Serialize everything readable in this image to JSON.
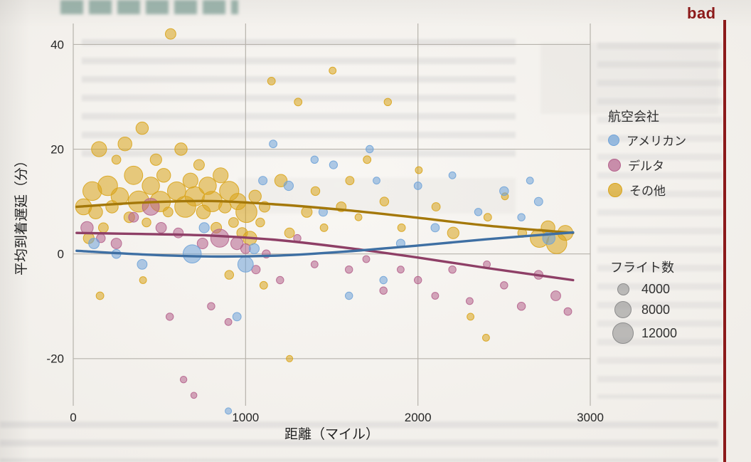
{
  "page": {
    "bad_label": "bad"
  },
  "chart_data": {
    "type": "scatter",
    "title": "",
    "xlabel": "距離（マイル）",
    "ylabel": "平均到着遅延（分）",
    "xlim": [
      0,
      3000
    ],
    "ylim": [
      -29,
      44
    ],
    "xticks": [
      0,
      1000,
      2000,
      3000
    ],
    "yticks": [
      -20,
      0,
      20,
      40
    ],
    "grid": true,
    "legend_title": "航空会社",
    "size_legend": {
      "title": "フライト数",
      "values": [
        4000,
        8000,
        12000
      ]
    },
    "size_legend_color": "#8c8c8c",
    "bad_color": "#8c1a1a",
    "series": [
      {
        "name": "アメリカン",
        "color": "#6FA3D8",
        "trend_color": "#3E6FA3",
        "points": [
          [
            120,
            2,
            3000
          ],
          [
            250,
            0,
            2200
          ],
          [
            400,
            -2,
            2600
          ],
          [
            690,
            0,
            9000
          ],
          [
            760,
            5,
            2800
          ],
          [
            900,
            -30,
            1100
          ],
          [
            950,
            -12,
            1900
          ],
          [
            1000,
            -2,
            6500
          ],
          [
            1050,
            1,
            2800
          ],
          [
            1100,
            14,
            2000
          ],
          [
            1160,
            21,
            1600
          ],
          [
            1250,
            13,
            2400
          ],
          [
            1400,
            18,
            1500
          ],
          [
            1450,
            8,
            2000
          ],
          [
            1510,
            17,
            1700
          ],
          [
            1600,
            -8,
            1500
          ],
          [
            1720,
            20,
            1500
          ],
          [
            1760,
            14,
            1300
          ],
          [
            1800,
            -5,
            1500
          ],
          [
            1900,
            2,
            2000
          ],
          [
            2000,
            13,
            1600
          ],
          [
            2100,
            5,
            1900
          ],
          [
            2200,
            15,
            1300
          ],
          [
            2350,
            8,
            1500
          ],
          [
            2500,
            12,
            2100
          ],
          [
            2600,
            7,
            1500
          ],
          [
            2650,
            14,
            1300
          ],
          [
            2700,
            10,
            1900
          ],
          [
            2760,
            3,
            4200
          ]
        ]
      },
      {
        "name": "デルタ",
        "color": "#B5638D",
        "trend_color": "#8E3F66",
        "points": [
          [
            80,
            5,
            4200
          ],
          [
            160,
            3,
            2100
          ],
          [
            250,
            2,
            3000
          ],
          [
            350,
            7,
            2600
          ],
          [
            450,
            9,
            7800
          ],
          [
            510,
            5,
            3000
          ],
          [
            560,
            -12,
            1500
          ],
          [
            610,
            4,
            2600
          ],
          [
            640,
            -24,
            1200
          ],
          [
            700,
            -27,
            1000
          ],
          [
            750,
            2,
            3100
          ],
          [
            800,
            -10,
            1500
          ],
          [
            850,
            3,
            8800
          ],
          [
            900,
            -13,
            1300
          ],
          [
            950,
            2,
            4200
          ],
          [
            1000,
            1,
            2600
          ],
          [
            1060,
            -3,
            2000
          ],
          [
            1120,
            0,
            1800
          ],
          [
            1200,
            -5,
            1500
          ],
          [
            1300,
            3,
            1500
          ],
          [
            1400,
            -2,
            1300
          ],
          [
            1600,
            -3,
            1500
          ],
          [
            1700,
            -1,
            1300
          ],
          [
            1800,
            -7,
            1500
          ],
          [
            1900,
            -3,
            1300
          ],
          [
            2000,
            -5,
            1500
          ],
          [
            2100,
            -8,
            1300
          ],
          [
            2200,
            -3,
            1500
          ],
          [
            2300,
            -9,
            1300
          ],
          [
            2400,
            -2,
            1300
          ],
          [
            2500,
            -6,
            1500
          ],
          [
            2600,
            -10,
            1800
          ],
          [
            2700,
            -4,
            2100
          ],
          [
            2800,
            -8,
            2600
          ],
          [
            2870,
            -11,
            1600
          ]
        ]
      },
      {
        "name": "その他",
        "color": "#D9A41B",
        "trend_color": "#A4780A",
        "points": [
          [
            60,
            9,
            7000
          ],
          [
            90,
            3,
            3200
          ],
          [
            110,
            12,
            9500
          ],
          [
            130,
            8,
            5200
          ],
          [
            150,
            20,
            6200
          ],
          [
            175,
            5,
            2600
          ],
          [
            200,
            13,
            10500
          ],
          [
            225,
            9,
            4200
          ],
          [
            250,
            18,
            2200
          ],
          [
            270,
            11,
            8200
          ],
          [
            300,
            21,
            5200
          ],
          [
            325,
            7,
            3100
          ],
          [
            350,
            15,
            9200
          ],
          [
            380,
            10,
            12000
          ],
          [
            400,
            24,
            4200
          ],
          [
            425,
            6,
            2100
          ],
          [
            450,
            13,
            8200
          ],
          [
            480,
            18,
            3600
          ],
          [
            505,
            10,
            11200
          ],
          [
            525,
            15,
            5200
          ],
          [
            550,
            8,
            2600
          ],
          [
            565,
            42,
            3000
          ],
          [
            600,
            12,
            9200
          ],
          [
            625,
            20,
            4200
          ],
          [
            650,
            9,
            12000
          ],
          [
            680,
            14,
            6200
          ],
          [
            705,
            11,
            10200
          ],
          [
            730,
            17,
            3100
          ],
          [
            755,
            8,
            5200
          ],
          [
            780,
            13,
            8200
          ],
          [
            805,
            10,
            11200
          ],
          [
            830,
            5,
            3100
          ],
          [
            855,
            15,
            6200
          ],
          [
            880,
            9,
            4200
          ],
          [
            905,
            12,
            10200
          ],
          [
            930,
            6,
            2600
          ],
          [
            955,
            10,
            7200
          ],
          [
            980,
            4,
            3100
          ],
          [
            1005,
            8,
            12000
          ],
          [
            1025,
            3,
            5200
          ],
          [
            1055,
            11,
            4200
          ],
          [
            1085,
            6,
            2100
          ],
          [
            1110,
            9,
            3100
          ],
          [
            1150,
            33,
            1600
          ],
          [
            1205,
            14,
            4200
          ],
          [
            1255,
            4,
            2600
          ],
          [
            1305,
            29,
            1600
          ],
          [
            1355,
            8,
            3100
          ],
          [
            1405,
            12,
            2100
          ],
          [
            1455,
            5,
            1600
          ],
          [
            1505,
            35,
            1300
          ],
          [
            1555,
            9,
            2600
          ],
          [
            1605,
            14,
            1900
          ],
          [
            1655,
            7,
            1300
          ],
          [
            1705,
            18,
            1600
          ],
          [
            1805,
            10,
            2100
          ],
          [
            1825,
            29,
            1500
          ],
          [
            1905,
            5,
            1600
          ],
          [
            2005,
            16,
            1300
          ],
          [
            2105,
            9,
            1900
          ],
          [
            2205,
            4,
            3600
          ],
          [
            2305,
            -12,
            1300
          ],
          [
            2405,
            7,
            1600
          ],
          [
            2505,
            11,
            1300
          ],
          [
            2605,
            4,
            2100
          ],
          [
            2705,
            3,
            9200
          ],
          [
            2755,
            5,
            5200
          ],
          [
            2805,
            2,
            11200
          ],
          [
            2855,
            4,
            6200
          ],
          [
            155,
            -8,
            1600
          ],
          [
            405,
            -5,
            1300
          ],
          [
            905,
            -4,
            2100
          ],
          [
            1105,
            -6,
            1600
          ],
          [
            2395,
            -16,
            1300
          ],
          [
            1255,
            -20,
            1100
          ]
        ]
      }
    ],
    "trend_lines": [
      {
        "name": "その他",
        "color": "#A4780A",
        "points": [
          [
            20,
            9
          ],
          [
            400,
            9.8
          ],
          [
            800,
            10.1
          ],
          [
            1200,
            9.4
          ],
          [
            1600,
            8.3
          ],
          [
            2000,
            6.9
          ],
          [
            2400,
            5.4
          ],
          [
            2900,
            4
          ]
        ]
      },
      {
        "name": "デルタ",
        "color": "#8E3F66",
        "points": [
          [
            20,
            4
          ],
          [
            400,
            3.8
          ],
          [
            800,
            3.5
          ],
          [
            1200,
            2.6
          ],
          [
            1600,
            1.1
          ],
          [
            2000,
            -0.7
          ],
          [
            2400,
            -2.7
          ],
          [
            2900,
            -5
          ]
        ]
      },
      {
        "name": "アメリカン",
        "color": "#3E6FA3",
        "points": [
          [
            20,
            0.6
          ],
          [
            400,
            -0.1
          ],
          [
            800,
            -0.5
          ],
          [
            1200,
            -0.3
          ],
          [
            1600,
            0.5
          ],
          [
            2000,
            1.6
          ],
          [
            2400,
            2.8
          ],
          [
            2900,
            4.1
          ]
        ]
      }
    ]
  }
}
